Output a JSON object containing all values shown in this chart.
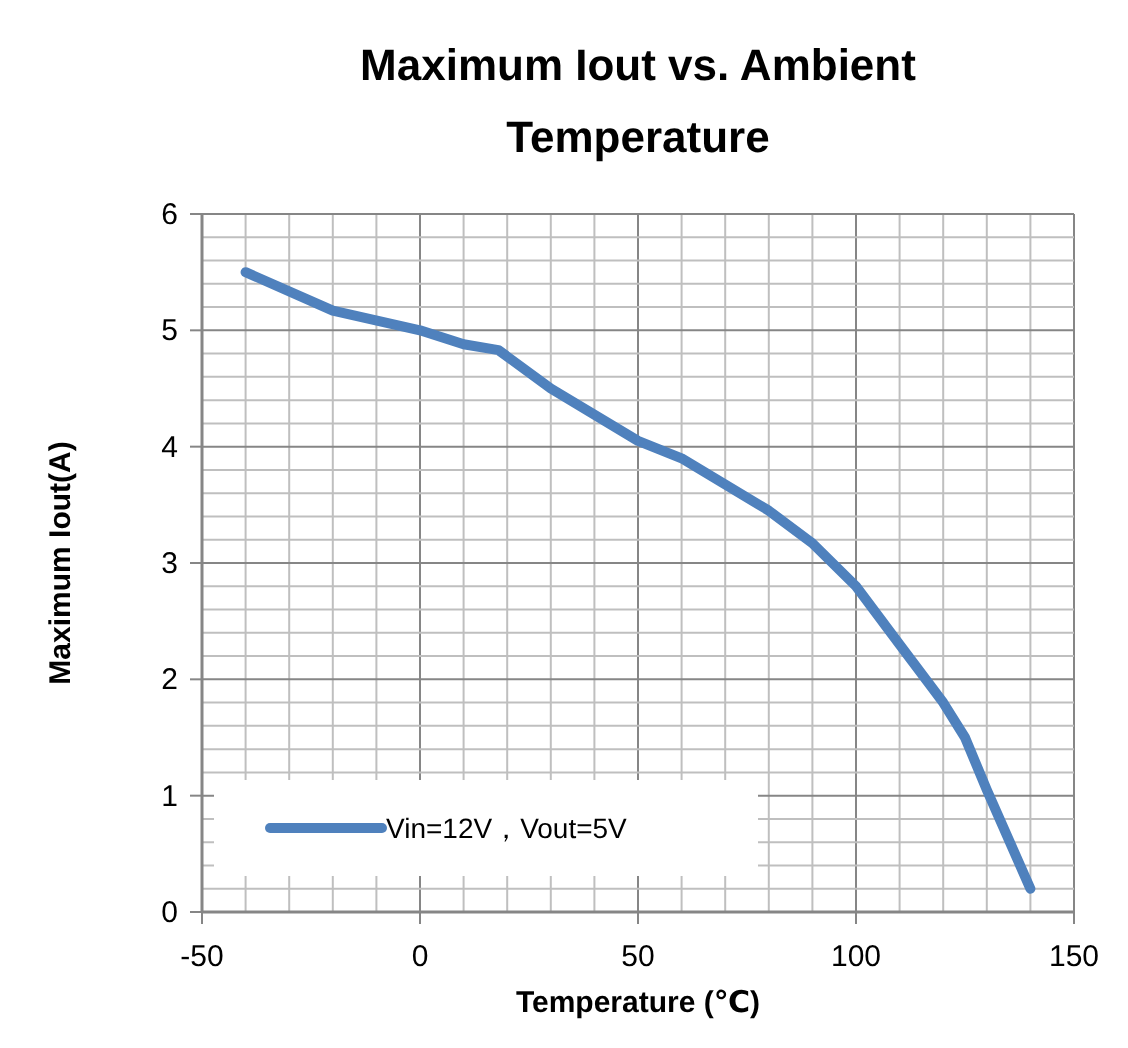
{
  "chart_data": {
    "type": "line",
    "title": "Maximum Iout vs. Ambient Temperature",
    "xlabel": "Temperature (℃)",
    "ylabel": "Maximum Iout(A)",
    "series": [
      {
        "name": "Vin=12V，Vout=5V",
        "color": "#4f81bd",
        "x": [
          -40,
          -20,
          0,
          10,
          18,
          30,
          50,
          60,
          80,
          90,
          100,
          110,
          120,
          125,
          130,
          140
        ],
        "values": [
          5.5,
          5.17,
          5.0,
          4.88,
          4.83,
          4.5,
          4.05,
          3.9,
          3.45,
          3.17,
          2.8,
          2.3,
          1.8,
          1.5,
          1.05,
          0.2
        ]
      }
    ],
    "xlim": [
      -50,
      150
    ],
    "xticks": [
      -50,
      0,
      50,
      100,
      150
    ],
    "ylim": [
      0,
      6
    ],
    "yticks": [
      0,
      1,
      2,
      3,
      4,
      5,
      6
    ],
    "grid": true,
    "legend": "bottom left",
    "marker": "none",
    "line_style": "solid"
  }
}
